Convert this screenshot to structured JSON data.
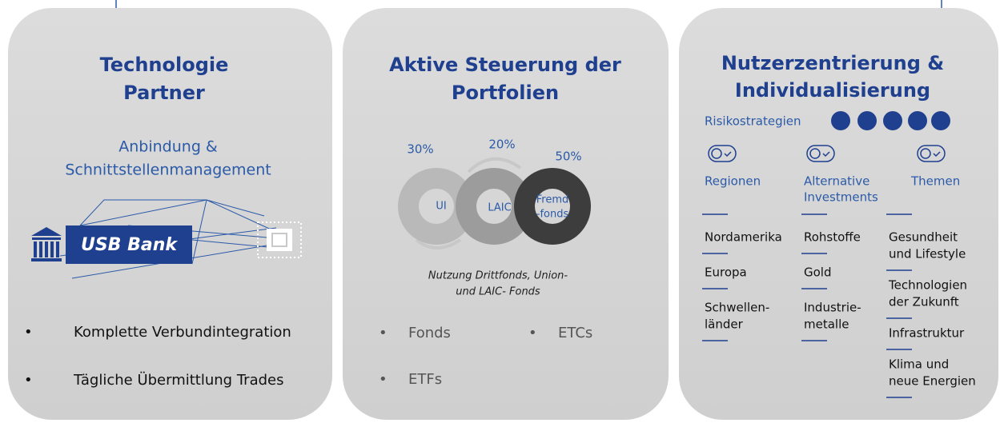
{
  "cards": [
    {
      "title": [
        "Technologie",
        "Partner"
      ],
      "subtitle": [
        "Anbindung &",
        "Schnittstellenmanagement"
      ],
      "bank": "USB Bank",
      "bullets": [
        "Komplette Verbundintegration",
        "Tägliche Übermittlung Trades"
      ]
    },
    {
      "title": [
        "Aktive Steuerung der",
        "Portfolien"
      ],
      "rings": [
        {
          "label": [
            "UI"
          ],
          "share": "30%"
        },
        {
          "label": [
            "LAIC"
          ],
          "share": "20%"
        },
        {
          "label": [
            "Fremd",
            "-fonds"
          ],
          "share": "50%"
        }
      ],
      "caption": [
        "Nutzung Drittfonds, Union-",
        "und LAIC- Fonds"
      ],
      "bullets": [
        "Fonds",
        "ETCs",
        "ETFs"
      ]
    },
    {
      "title": [
        "Nutzerzentrierung &",
        "Individualisierung"
      ],
      "risk_label": "Risikostrategien",
      "columns": [
        {
          "header": [
            "Regionen"
          ],
          "items": [
            [
              "Nordamerika"
            ],
            [
              "Europa"
            ],
            [
              "Schwellen-",
              "länder"
            ]
          ]
        },
        {
          "header": [
            "Alternative",
            "Investments"
          ],
          "items": [
            [
              "Rohstoffe"
            ],
            [
              "Gold"
            ],
            [
              "Industrie-",
              "metalle"
            ]
          ]
        },
        {
          "header": [
            "Themen"
          ],
          "items": [
            [
              "Gesundheit",
              "und Lifestyle"
            ],
            [
              "Technologien",
              "der Zukunft"
            ],
            [
              "Infrastruktur"
            ],
            [
              "Klima und",
              "neue Energien"
            ]
          ]
        }
      ]
    }
  ]
}
